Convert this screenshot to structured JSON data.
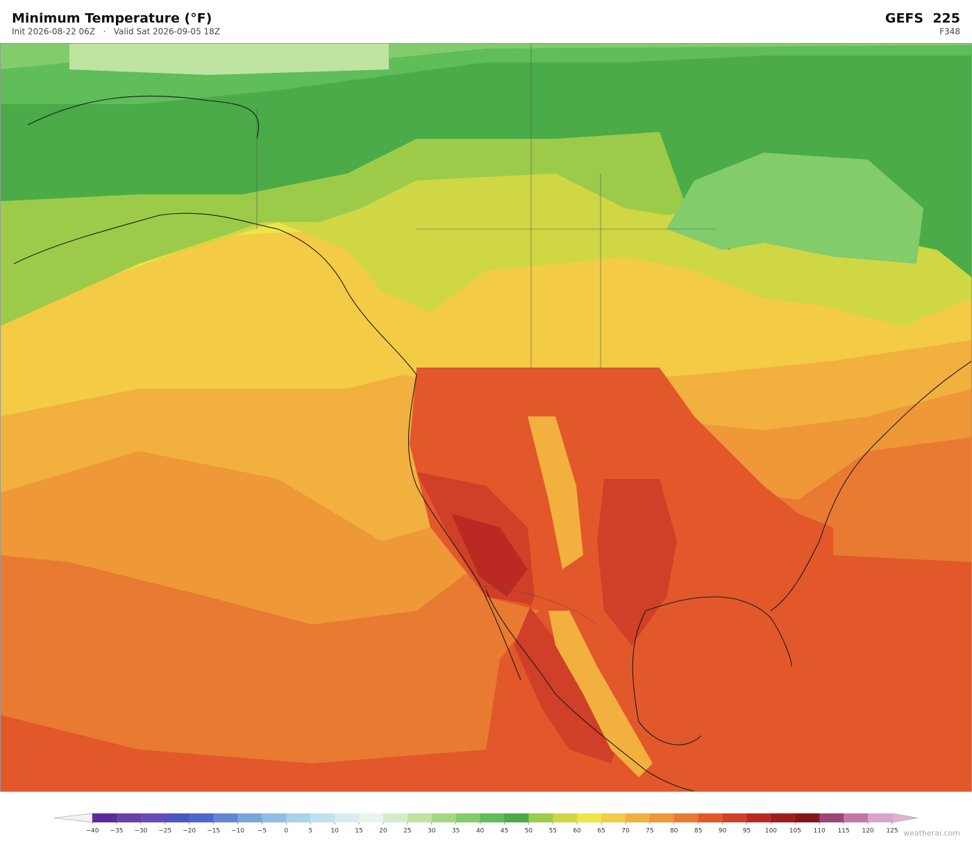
{
  "header": {
    "title": "Minimum Temperature  (°F)",
    "subtitle": "Init 2026-08-22 06Z   ·   Valid Sat 2026-09-05 18Z",
    "model": "GEFS  225",
    "forecast_hour": "F348"
  },
  "colorbar": {
    "clim": [
      -40,
      125
    ],
    "ticks": [
      {
        "value": -40,
        "label": "−40"
      },
      {
        "value": -35,
        "label": "−35"
      },
      {
        "value": -30,
        "label": "−30"
      },
      {
        "value": -25,
        "label": "−25"
      },
      {
        "value": -20,
        "label": "−20"
      },
      {
        "value": -15,
        "label": "−15"
      },
      {
        "value": -10,
        "label": "−10"
      },
      {
        "value": -5,
        "label": "−5"
      },
      0,
      5,
      10,
      15,
      20,
      25,
      30,
      35,
      40,
      45,
      50,
      55,
      60,
      65,
      70,
      75,
      80,
      85,
      90,
      95,
      100,
      105,
      110,
      115,
      120,
      125
    ],
    "colors": [
      "#5a2b9a",
      "#6b3fa8",
      "#6a4cb8",
      "#4b55c6",
      "#4f66cf",
      "#6386d6",
      "#7ba6dc",
      "#8fbde3",
      "#a8d3ea",
      "#c2e2ef",
      "#d8ecf2",
      "#e8f4ec",
      "#d5ecc9",
      "#bfe3a0",
      "#a3d882",
      "#82cc6c",
      "#5fbd5a",
      "#4aab48",
      "#9ccb4a",
      "#cfd745",
      "#ece548",
      "#f3cb45",
      "#f2b03e",
      "#ef9838",
      "#e87a32",
      "#e2582b",
      "#d03f27",
      "#bb2a22",
      "#a11c1e",
      "#86151a",
      "#9b4676",
      "#c277a8",
      "#d9a3cf"
    ],
    "under_color": "#f2f2f2",
    "over_color": "#e0b0d8"
  },
  "watermark": "weatherai.com"
}
